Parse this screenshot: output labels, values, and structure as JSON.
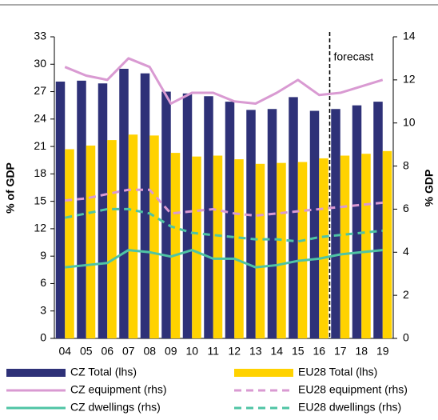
{
  "chart_data": {
    "type": "bar",
    "y_label": "% of GDP",
    "y2_label": "% GDP",
    "annotation": "forecast",
    "categories": [
      "04",
      "05",
      "06",
      "07",
      "08",
      "09",
      "10",
      "11",
      "12",
      "13",
      "14",
      "15",
      "16",
      "17",
      "18",
      "19"
    ],
    "ylim": [
      0,
      33
    ],
    "yticks": [
      0,
      3,
      6,
      9,
      12,
      15,
      18,
      21,
      24,
      27,
      30,
      33
    ],
    "y2lim": [
      0,
      14
    ],
    "y2ticks": [
      0,
      2,
      4,
      6,
      8,
      10,
      12,
      14
    ],
    "grid": false,
    "series": [
      {
        "name": "CZ Total (lhs)",
        "type": "bar",
        "color": "#2e3178",
        "values": [
          28.1,
          28.2,
          27.9,
          29.5,
          29.0,
          27.0,
          26.8,
          26.5,
          25.9,
          25.0,
          25.1,
          26.4,
          24.9,
          25.1,
          25.5,
          25.9
        ]
      },
      {
        "name": "EU28 Total (lhs)",
        "type": "bar",
        "color": "#ffd200",
        "values": [
          20.7,
          21.1,
          21.7,
          22.3,
          22.2,
          20.3,
          19.9,
          20.0,
          19.6,
          19.1,
          19.2,
          19.3,
          19.7,
          20.0,
          20.2,
          20.5
        ]
      },
      {
        "name": "CZ equipment (rhs)",
        "type": "line",
        "axis": "y2",
        "dashed": false,
        "color": "#d99ad2",
        "values": [
          12.6,
          12.2,
          12.0,
          13.0,
          12.6,
          10.9,
          11.4,
          11.4,
          11.0,
          10.9,
          11.4,
          12.0,
          11.3,
          11.4,
          11.7,
          12.0
        ]
      },
      {
        "name": "EU28 equipment (rhs)",
        "type": "line",
        "axis": "y2",
        "dashed": true,
        "color": "#d99ad2",
        "values": [
          6.4,
          6.5,
          6.7,
          6.9,
          6.9,
          5.8,
          5.9,
          6.0,
          5.8,
          5.7,
          5.8,
          5.9,
          6.0,
          6.1,
          6.2,
          6.3
        ]
      },
      {
        "name": "CZ dwellings (rhs)",
        "type": "line",
        "axis": "y2",
        "dashed": false,
        "color": "#4fc4a4",
        "values": [
          3.3,
          3.4,
          3.5,
          4.1,
          4.0,
          3.8,
          4.1,
          3.7,
          3.7,
          3.3,
          3.4,
          3.6,
          3.7,
          3.9,
          4.0,
          4.1
        ]
      },
      {
        "name": "EU28 dwellings (rhs)",
        "type": "line",
        "axis": "y2",
        "dashed": true,
        "color": "#4fc4a4",
        "values": [
          5.6,
          5.8,
          6.0,
          6.0,
          5.8,
          5.2,
          4.9,
          4.8,
          4.7,
          4.6,
          4.6,
          4.5,
          4.7,
          4.8,
          4.9,
          5.0
        ]
      }
    ]
  }
}
